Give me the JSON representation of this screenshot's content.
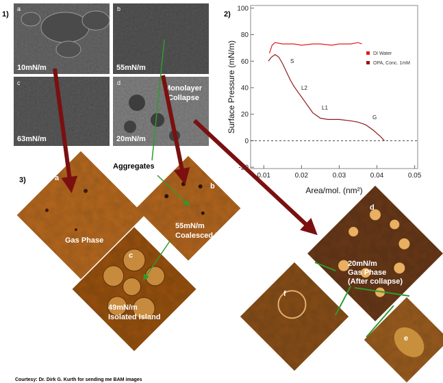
{
  "panel_labels": [
    "1)",
    "2)",
    "3)"
  ],
  "bam_images": [
    {
      "letter": "a",
      "label": "10mN/m"
    },
    {
      "letter": "b",
      "label": "55mN/m"
    },
    {
      "letter": "c",
      "label": "63mN/m"
    },
    {
      "letter": "d",
      "label": "20mN/m"
    }
  ],
  "bam_annotation": [
    "Monolayer",
    "Collapse"
  ],
  "aggregates_label": "Aggregates",
  "afm_images": [
    {
      "letter": "a",
      "lines": [
        "Gas Phase"
      ]
    },
    {
      "letter": "b",
      "lines": [
        "55mN/m",
        "Coalesced Island"
      ]
    },
    {
      "letter": "c",
      "lines": [
        "49mN/m",
        "Isolated Island"
      ]
    },
    {
      "letter": "d",
      "lines": [
        "20mN/m",
        "Gas Phase",
        "(After collapse)"
      ]
    },
    {
      "letter": "f"
    },
    {
      "letter": "e"
    }
  ],
  "chart_data": {
    "type": "line",
    "x_label": "Area/mol. (nm²)",
    "y_label": "Surface Pressure (mN/m)",
    "xlim": [
      0.0065,
      0.0508
    ],
    "ylim": [
      -21,
      102
    ],
    "xticks": [
      0.01,
      0.02,
      0.03,
      0.04,
      0.05
    ],
    "yticks": [
      -20,
      0,
      20,
      40,
      60,
      80,
      100
    ],
    "series": [
      {
        "name": "DI Water",
        "color": "#e31a1c",
        "x": [
          0.0115,
          0.0122,
          0.013,
          0.015,
          0.018,
          0.02,
          0.023,
          0.025,
          0.028,
          0.03,
          0.033,
          0.035,
          0.036
        ],
        "values": [
          66,
          72,
          74,
          73,
          73,
          72,
          73,
          73,
          72,
          73,
          73,
          74,
          73
        ]
      },
      {
        "name": "OPA, Conc. 1mM",
        "color": "#8b1a1a",
        "x": [
          0.0112,
          0.012,
          0.013,
          0.014,
          0.015,
          0.016,
          0.017,
          0.018,
          0.019,
          0.02,
          0.021,
          0.022,
          0.023,
          0.025,
          0.027,
          0.03,
          0.033,
          0.035,
          0.037,
          0.039,
          0.041,
          0.042
        ],
        "values": [
          60,
          63,
          65,
          63,
          58,
          52,
          46,
          41,
          37,
          33,
          29,
          25,
          21,
          17,
          16,
          16,
          15,
          14,
          12,
          8,
          3,
          0
        ]
      }
    ],
    "annotations": [
      "S",
      "L2",
      "L1",
      "G"
    ]
  },
  "footer": "Courtesy: Dr. Dirk G. Kurth for sending me BAM images"
}
